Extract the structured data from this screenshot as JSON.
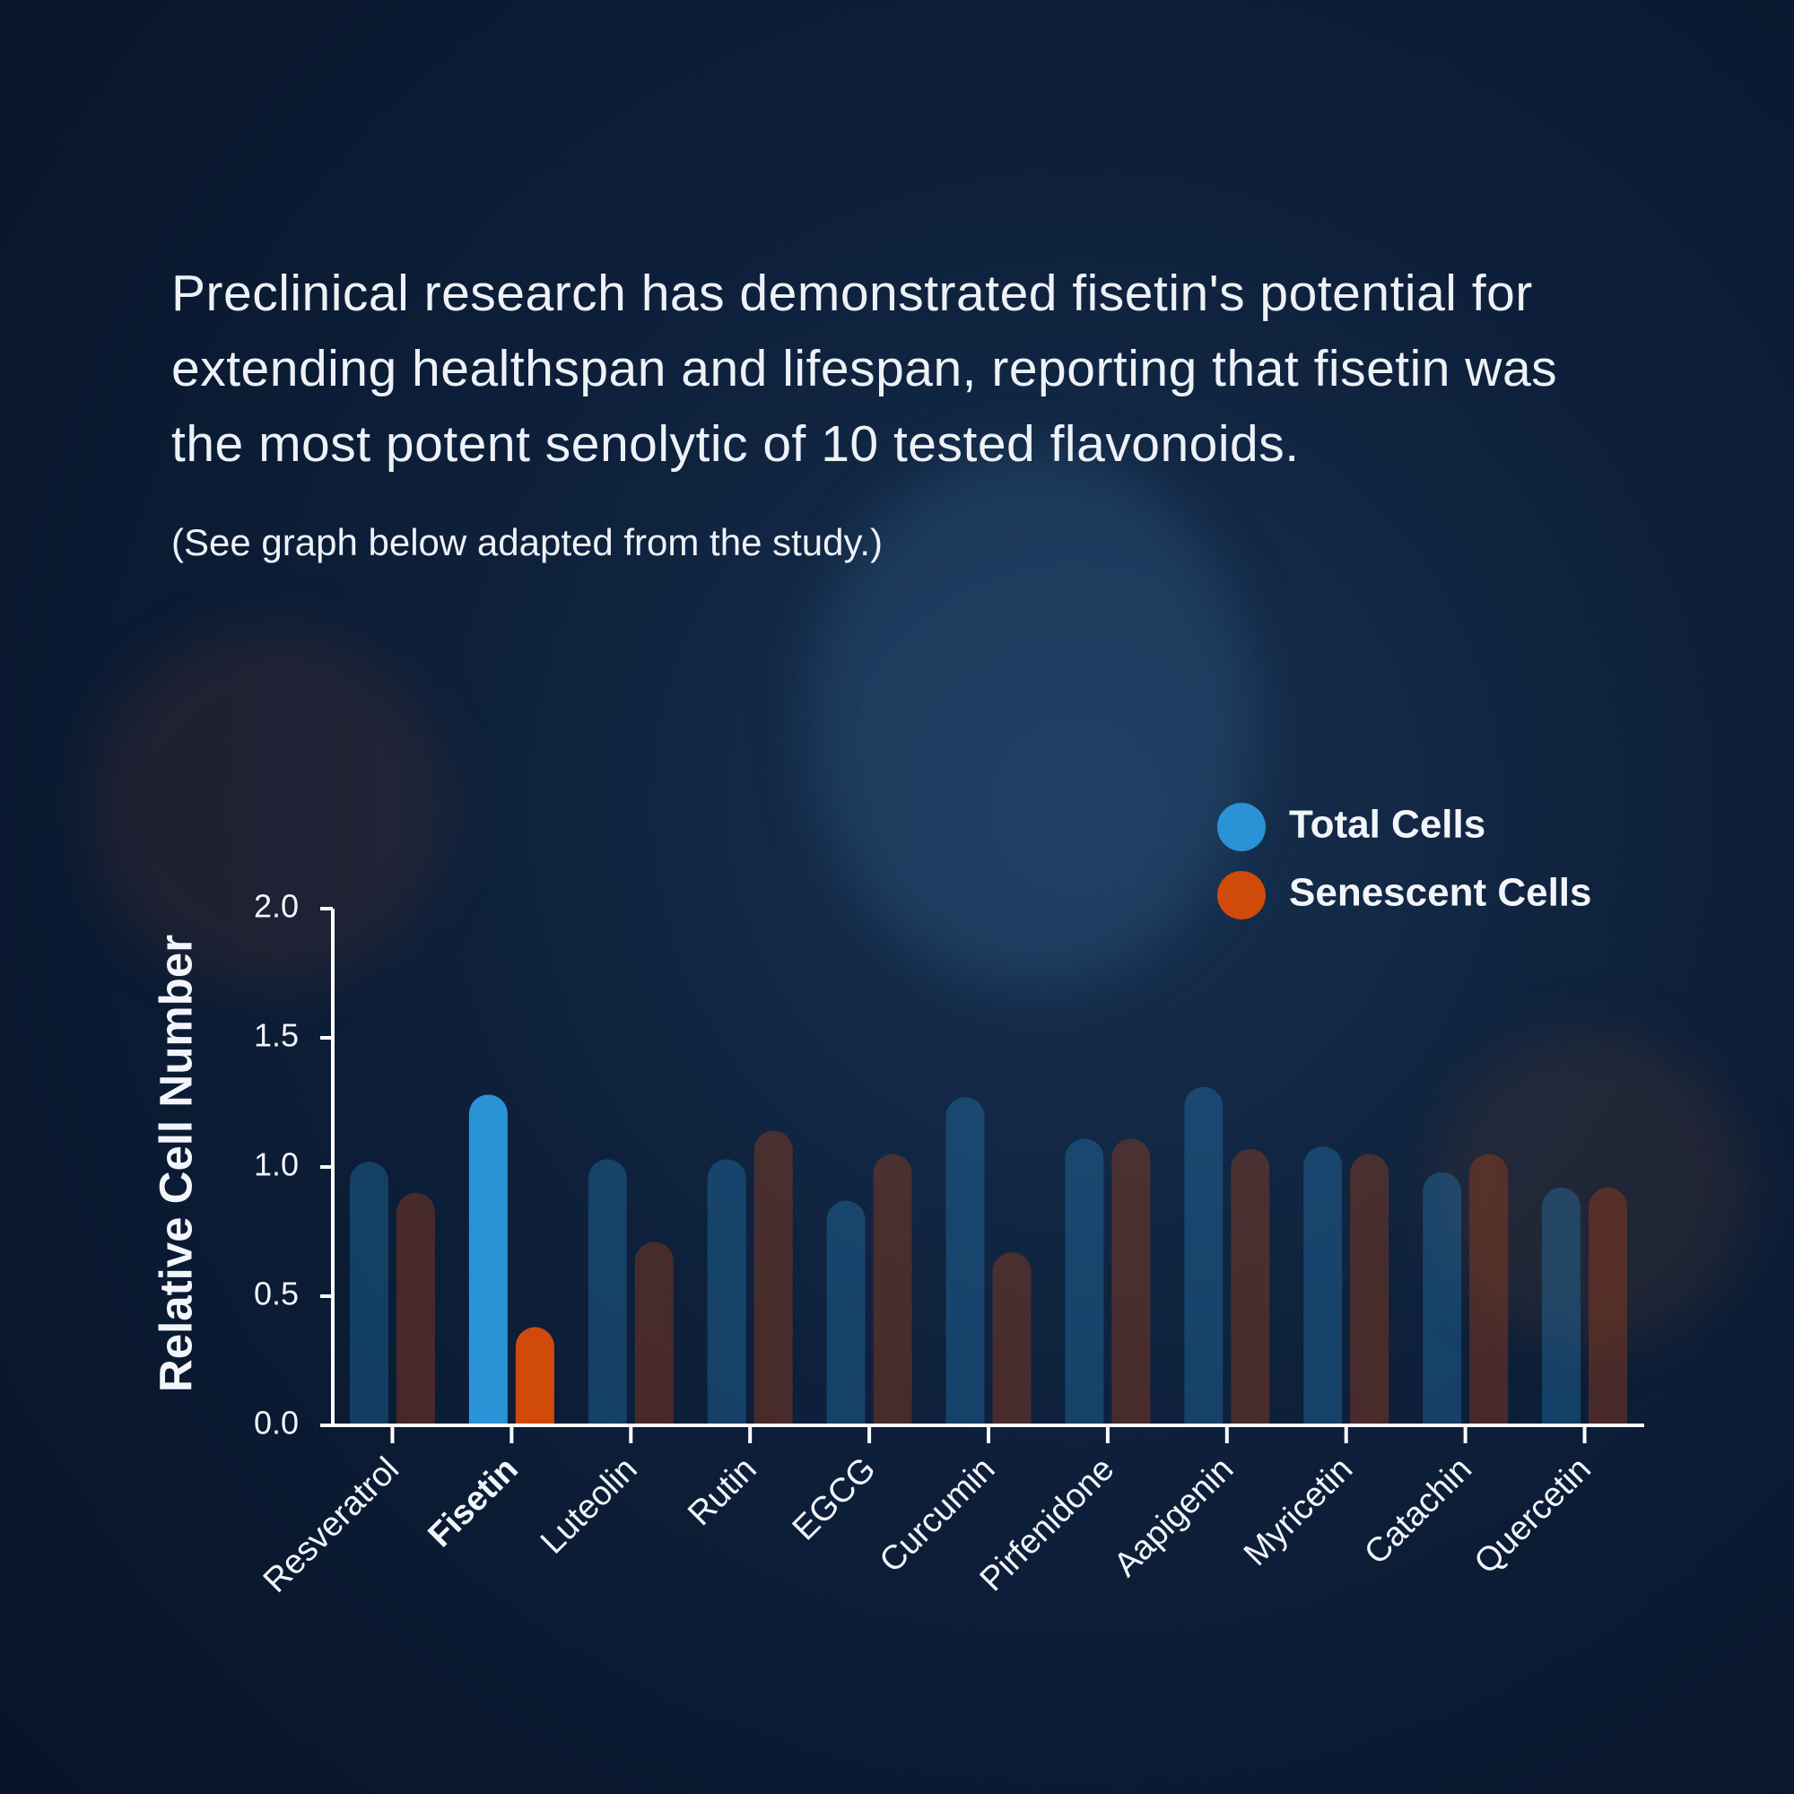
{
  "intro": {
    "lines": [
      "Preclinical research has demonstrated fisetin's potential for",
      "extending healthspan and lifespan, reporting that fisetin was",
      "the most potent senolytic of 10 tested flavonoids."
    ],
    "note": "(See graph below adapted from the study.)"
  },
  "chart_data": {
    "type": "bar",
    "y_label": "Relative Cell Number",
    "categories": [
      "Resveratrol",
      "Fisetin",
      "Luteolin",
      "Rutin",
      "EGCG",
      "Curcumin",
      "Pirfenidone",
      "Aapigenin",
      "Myricetin",
      "Catachin",
      "Quercetin"
    ],
    "series": [
      {
        "name": "Total Cells",
        "color": "#2a93d5",
        "values": [
          1.02,
          1.28,
          1.03,
          1.03,
          0.87,
          1.27,
          1.11,
          1.31,
          1.08,
          0.98,
          0.92
        ]
      },
      {
        "name": "Senescent Cells",
        "color": "#d04a0a",
        "values": [
          0.9,
          0.38,
          0.71,
          1.14,
          1.05,
          0.67,
          1.11,
          1.07,
          1.05,
          1.05,
          0.92
        ]
      }
    ],
    "highlight": "Fisetin",
    "ylim": [
      0,
      2
    ],
    "yticks": [
      {
        "value": 0,
        "label": "0.0"
      },
      {
        "value": 0.5,
        "label": "0.5"
      },
      {
        "value": 1,
        "label": "1.0"
      },
      {
        "value": 1.5,
        "label": "1.5"
      },
      {
        "value": 2,
        "label": "2.0"
      }
    ],
    "legend": "top-right"
  }
}
